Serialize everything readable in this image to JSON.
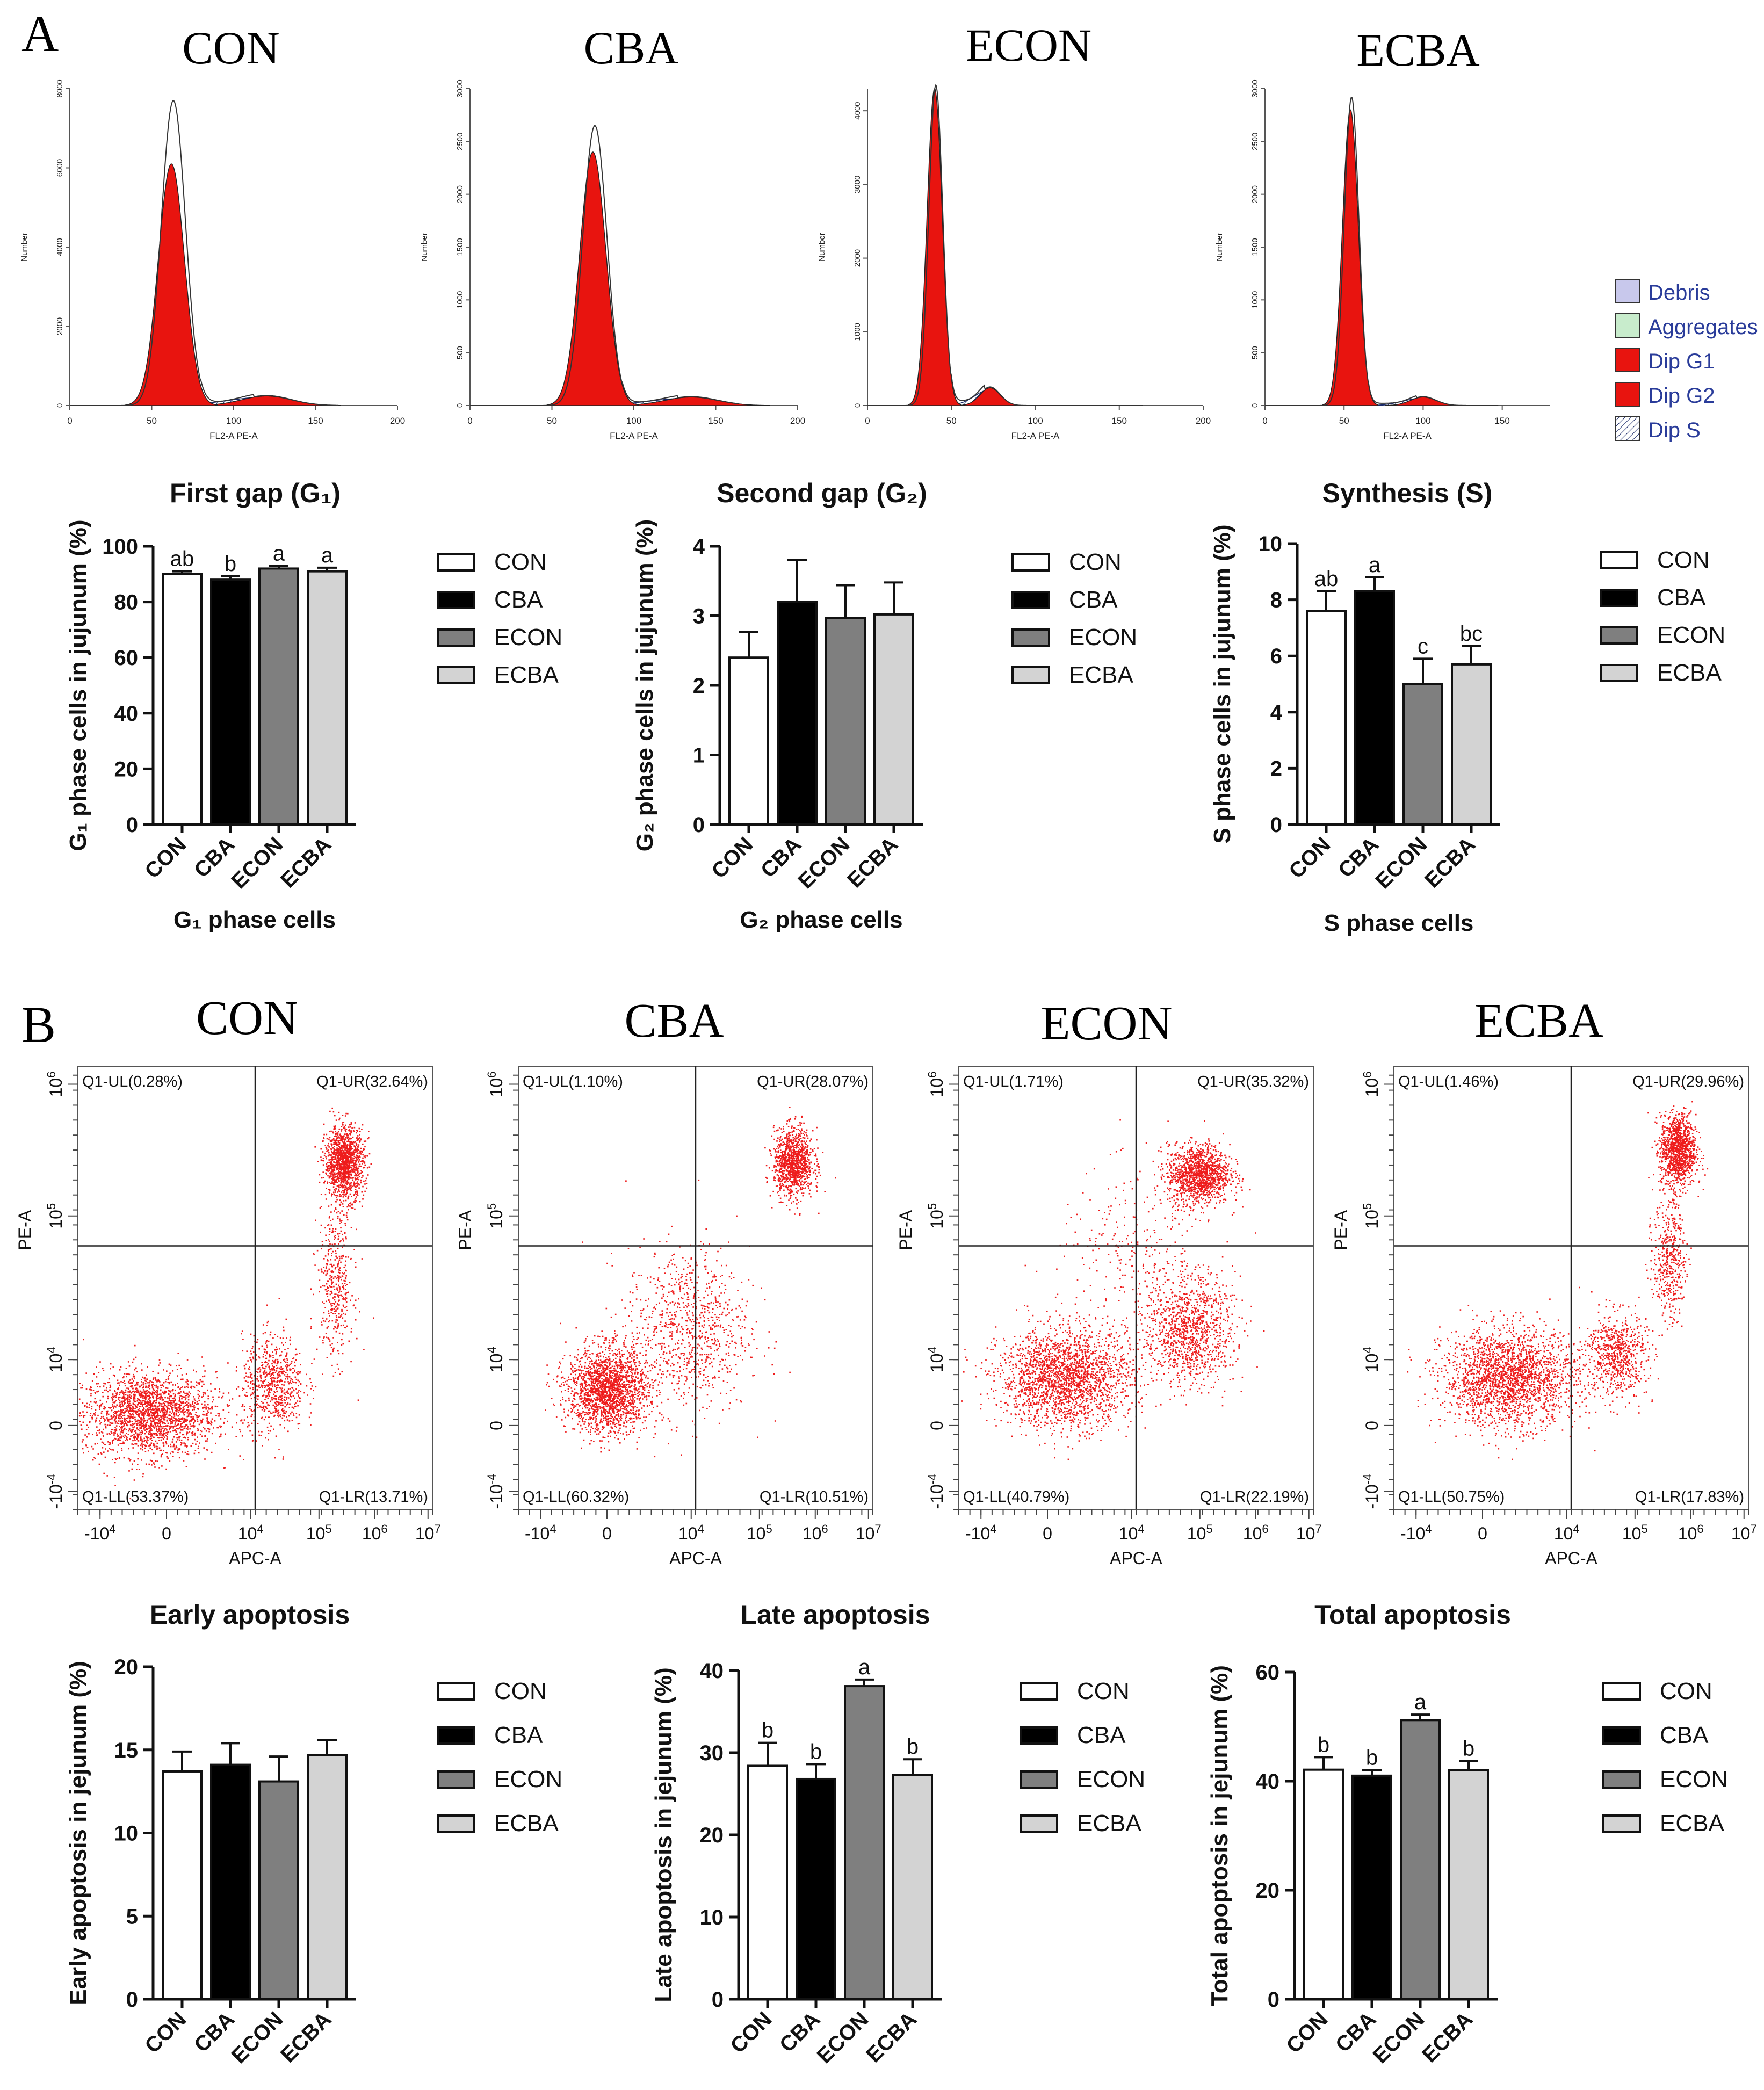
{
  "panel_labels": {
    "a": "A",
    "b": "B"
  },
  "colors": {
    "CON": "#ffffff",
    "CBA": "#000000",
    "ECON": "#7f7f7f",
    "ECBA": "#d3d3d3",
    "hist_fill": "#e8140f",
    "dot": "#ee1c1c"
  },
  "histograms": [
    {
      "title": "CON",
      "ylabel": "Number",
      "xlabel": "FL2-A PE-A",
      "ymax": 8000,
      "yticks": [
        "0",
        "2000",
        "4000",
        "6000",
        "8000"
      ],
      "xmax": 200,
      "xticks": [
        "0",
        "50",
        "100",
        "150",
        "200"
      ],
      "g1_pos": 62,
      "g1_height": 6100,
      "g1_sd": 8,
      "g2_pos": 120,
      "g2_height": 240,
      "g2_sd": 15,
      "envelope_peak": 7700
    },
    {
      "title": "CBA",
      "ylabel": "Number",
      "xlabel": "FL2-A PE-A",
      "ymax": 3000,
      "yticks": [
        "0",
        "500",
        "1000",
        "1500",
        "2000",
        "2500",
        "3000"
      ],
      "xmax": 200,
      "xticks": [
        "0",
        "50",
        "100",
        "150",
        "200"
      ],
      "g1_pos": 75,
      "g1_height": 2400,
      "g1_sd": 8,
      "g2_pos": 135,
      "g2_height": 80,
      "g2_sd": 16,
      "envelope_peak": 2650
    },
    {
      "title": "ECON",
      "ylabel": "Number",
      "xlabel": "FL2-A PE-A",
      "ymax": 4300,
      "yticks": [
        "0",
        "1000",
        "2000",
        "3000",
        "4000"
      ],
      "xmax": 200,
      "xticks": [
        "0",
        "50",
        "100",
        "150",
        "200"
      ],
      "g1_pos": 40,
      "g1_height": 4300,
      "g1_sd": 4.5,
      "g2_pos": 73,
      "g2_height": 240,
      "g2_sd": 6,
      "envelope_peak": 4350
    },
    {
      "title": "ECBA",
      "ylabel": "Number",
      "xlabel": "FL2-A PE-A",
      "ymax": 3000,
      "yticks": [
        "0",
        "500",
        "1000",
        "1500",
        "2000",
        "2500",
        "3000"
      ],
      "xmax": 180,
      "xticks": [
        "0",
        "50",
        "100",
        "150"
      ],
      "g1_pos": 54,
      "g1_height": 2800,
      "g1_sd": 5,
      "g2_pos": 100,
      "g2_height": 80,
      "g2_sd": 8,
      "envelope_peak": 2920
    }
  ],
  "hist_legend": [
    {
      "label": "Debris",
      "color": "#c8c8ec",
      "hatch": false
    },
    {
      "label": "Aggregates",
      "color": "#c8eccc",
      "hatch": false
    },
    {
      "label": "Dip G1",
      "color": "#e8140f",
      "hatch": false
    },
    {
      "label": "Dip G2",
      "color": "#e8140f",
      "hatch": false
    },
    {
      "label": "Dip S",
      "color": "#ffffff",
      "hatch": true
    }
  ],
  "bar_legend": [
    "CON",
    "CBA",
    "ECON",
    "ECBA"
  ],
  "chart_data": [
    {
      "type": "bar",
      "title": "First gap (G₁)",
      "ylabel": "G₁ phase cells in jujunum (%)",
      "xlabel": "G₁ phase cells",
      "categories": [
        "CON",
        "CBA",
        "ECON",
        "ECBA"
      ],
      "values": [
        90,
        88,
        92,
        91
      ],
      "errors": [
        1,
        1.2,
        1,
        1.3
      ],
      "letters": [
        "ab",
        "b",
        "a",
        "a"
      ],
      "ylim": [
        0,
        100
      ],
      "yticks": [
        0,
        20,
        40,
        60,
        80,
        100
      ]
    },
    {
      "type": "bar",
      "title": "Second gap (G₂)",
      "ylabel": "G₂ phase cells in jujunum (%)",
      "xlabel": "G₂ phase cells",
      "categories": [
        "CON",
        "CBA",
        "ECON",
        "ECBA"
      ],
      "values": [
        2.4,
        3.2,
        2.97,
        3.02
      ],
      "errors": [
        0.37,
        0.6,
        0.47,
        0.46
      ],
      "letters": [
        "",
        "",
        "",
        ""
      ],
      "ylim": [
        0,
        4
      ],
      "yticks": [
        0,
        1,
        2,
        3,
        4
      ]
    },
    {
      "type": "bar",
      "title": "Synthesis (S)",
      "ylabel": "S phase cells in jujunum (%)",
      "xlabel": "S phase cells",
      "categories": [
        "CON",
        "CBA",
        "ECON",
        "ECBA"
      ],
      "values": [
        7.6,
        8.3,
        5.0,
        5.7
      ],
      "errors": [
        0.7,
        0.5,
        0.9,
        0.65
      ],
      "letters": [
        "ab",
        "a",
        "c",
        "bc"
      ],
      "ylim": [
        0,
        10
      ],
      "yticks": [
        0,
        2,
        4,
        6,
        8,
        10
      ]
    },
    {
      "type": "scatter",
      "title": "CON",
      "xlabel": "APC-A",
      "ylabel": "PE-A",
      "quadrants": {
        "UL": "Q1-UL(0.28%)",
        "UR": "Q1-UR(32.64%)",
        "LL": "Q1-LL(53.37%)",
        "LR": "Q1-LR(13.71%)"
      },
      "clusters": [
        {
          "cx": -0.2,
          "cy": 0.1,
          "sx": 0.75,
          "sy": 0.35,
          "n": 2200
        },
        {
          "cx": 1.2,
          "cy": 0.35,
          "sx": 0.35,
          "sy": 0.4,
          "n": 700
        },
        {
          "cx": 1.9,
          "cy": 1.2,
          "sx": 0.2,
          "sy": 0.65,
          "n": 450
        },
        {
          "cx": 2.0,
          "cy": 2.2,
          "sx": 0.22,
          "sy": 0.3,
          "n": 1300
        }
      ]
    },
    {
      "type": "scatter",
      "title": "CBA",
      "xlabel": "APC-A",
      "ylabel": "PE-A",
      "quadrants": {
        "UL": "Q1-UL(1.10%)",
        "UR": "Q1-UR(28.07%)",
        "LL": "Q1-LL(60.32%)",
        "LR": "Q1-LR(10.51%)"
      },
      "clusters": [
        {
          "cx": 0.0,
          "cy": 0.3,
          "sx": 0.45,
          "sy": 0.35,
          "n": 2000
        },
        {
          "cx": 0.9,
          "cy": 0.8,
          "sx": 0.7,
          "sy": 0.7,
          "n": 900
        },
        {
          "cx": 2.1,
          "cy": 2.2,
          "sx": 0.22,
          "sy": 0.28,
          "n": 1100
        }
      ]
    },
    {
      "type": "scatter",
      "title": "ECON",
      "xlabel": "APC-A",
      "ylabel": "PE-A",
      "quadrants": {
        "UL": "Q1-UL(1.71%)",
        "UR": "Q1-UR(35.32%)",
        "LL": "Q1-LL(40.79%)",
        "LR": "Q1-LR(22.19%)"
      },
      "clusters": [
        {
          "cx": 0.2,
          "cy": 0.4,
          "sx": 0.75,
          "sy": 0.4,
          "n": 2200
        },
        {
          "cx": 1.6,
          "cy": 0.8,
          "sx": 0.5,
          "sy": 0.45,
          "n": 1100
        },
        {
          "cx": 1.7,
          "cy": 2.1,
          "sx": 0.35,
          "sy": 0.25,
          "n": 1300
        },
        {
          "cx": 1.0,
          "cy": 1.4,
          "sx": 0.9,
          "sy": 0.7,
          "n": 300
        }
      ]
    },
    {
      "type": "scatter",
      "title": "ECBA",
      "xlabel": "APC-A",
      "ylabel": "PE-A",
      "quadrants": {
        "UL": "Q1-UL(1.46%)",
        "UR": "Q1-UR(29.96%)",
        "LL": "Q1-LL(50.75%)",
        "LR": "Q1-LR(17.83%)"
      },
      "clusters": [
        {
          "cx": 0.3,
          "cy": 0.4,
          "sx": 0.75,
          "sy": 0.4,
          "n": 2200
        },
        {
          "cx": 1.5,
          "cy": 0.6,
          "sx": 0.35,
          "sy": 0.35,
          "n": 700
        },
        {
          "cx": 2.1,
          "cy": 1.4,
          "sx": 0.18,
          "sy": 0.5,
          "n": 450
        },
        {
          "cx": 2.2,
          "cy": 2.3,
          "sx": 0.2,
          "sy": 0.3,
          "n": 1200
        }
      ]
    },
    {
      "type": "bar",
      "title": "Early apoptosis",
      "ylabel": "Early apoptosis in jejunum (%)",
      "xlabel": "",
      "categories": [
        "CON",
        "CBA",
        "ECON",
        "ECBA"
      ],
      "values": [
        13.7,
        14.1,
        13.1,
        14.7
      ],
      "errors": [
        1.2,
        1.3,
        1.5,
        0.9
      ],
      "letters": [
        "",
        "",
        "",
        ""
      ],
      "ylim": [
        0,
        20
      ],
      "yticks": [
        0,
        5,
        10,
        15,
        20
      ]
    },
    {
      "type": "bar",
      "title": "Late apoptosis",
      "ylabel": "Late apoptosis in jejunum (%)",
      "xlabel": "",
      "categories": [
        "CON",
        "CBA",
        "ECON",
        "ECBA"
      ],
      "values": [
        28.4,
        26.8,
        38.1,
        27.3
      ],
      "errors": [
        2.8,
        1.8,
        0.8,
        1.9
      ],
      "letters": [
        "b",
        "b",
        "a",
        "b"
      ],
      "ylim": [
        0,
        40
      ],
      "yticks": [
        0,
        10,
        20,
        30,
        40
      ]
    },
    {
      "type": "bar",
      "title": "Total apoptosis",
      "ylabel": "Total apoptosis in jejunum (%)",
      "xlabel": "",
      "categories": [
        "CON",
        "CBA",
        "ECON",
        "ECBA"
      ],
      "values": [
        42.1,
        41.0,
        51.2,
        42.0
      ],
      "errors": [
        2.3,
        1.0,
        1.0,
        1.7
      ],
      "letters": [
        "b",
        "b",
        "a",
        "b"
      ],
      "ylim": [
        0,
        60
      ],
      "yticks": [
        0,
        20,
        40,
        60
      ]
    }
  ],
  "scatter_axes": {
    "yticks": [
      "-10",
      "0",
      "10",
      "10",
      "10"
    ],
    "yexp": [
      "-4",
      "",
      "4",
      "5",
      "6"
    ],
    "xticks": [
      "-10",
      "0",
      "10",
      "10",
      "10",
      "10"
    ],
    "xexp": [
      "4",
      "",
      "4",
      "5",
      "6",
      "7"
    ]
  }
}
